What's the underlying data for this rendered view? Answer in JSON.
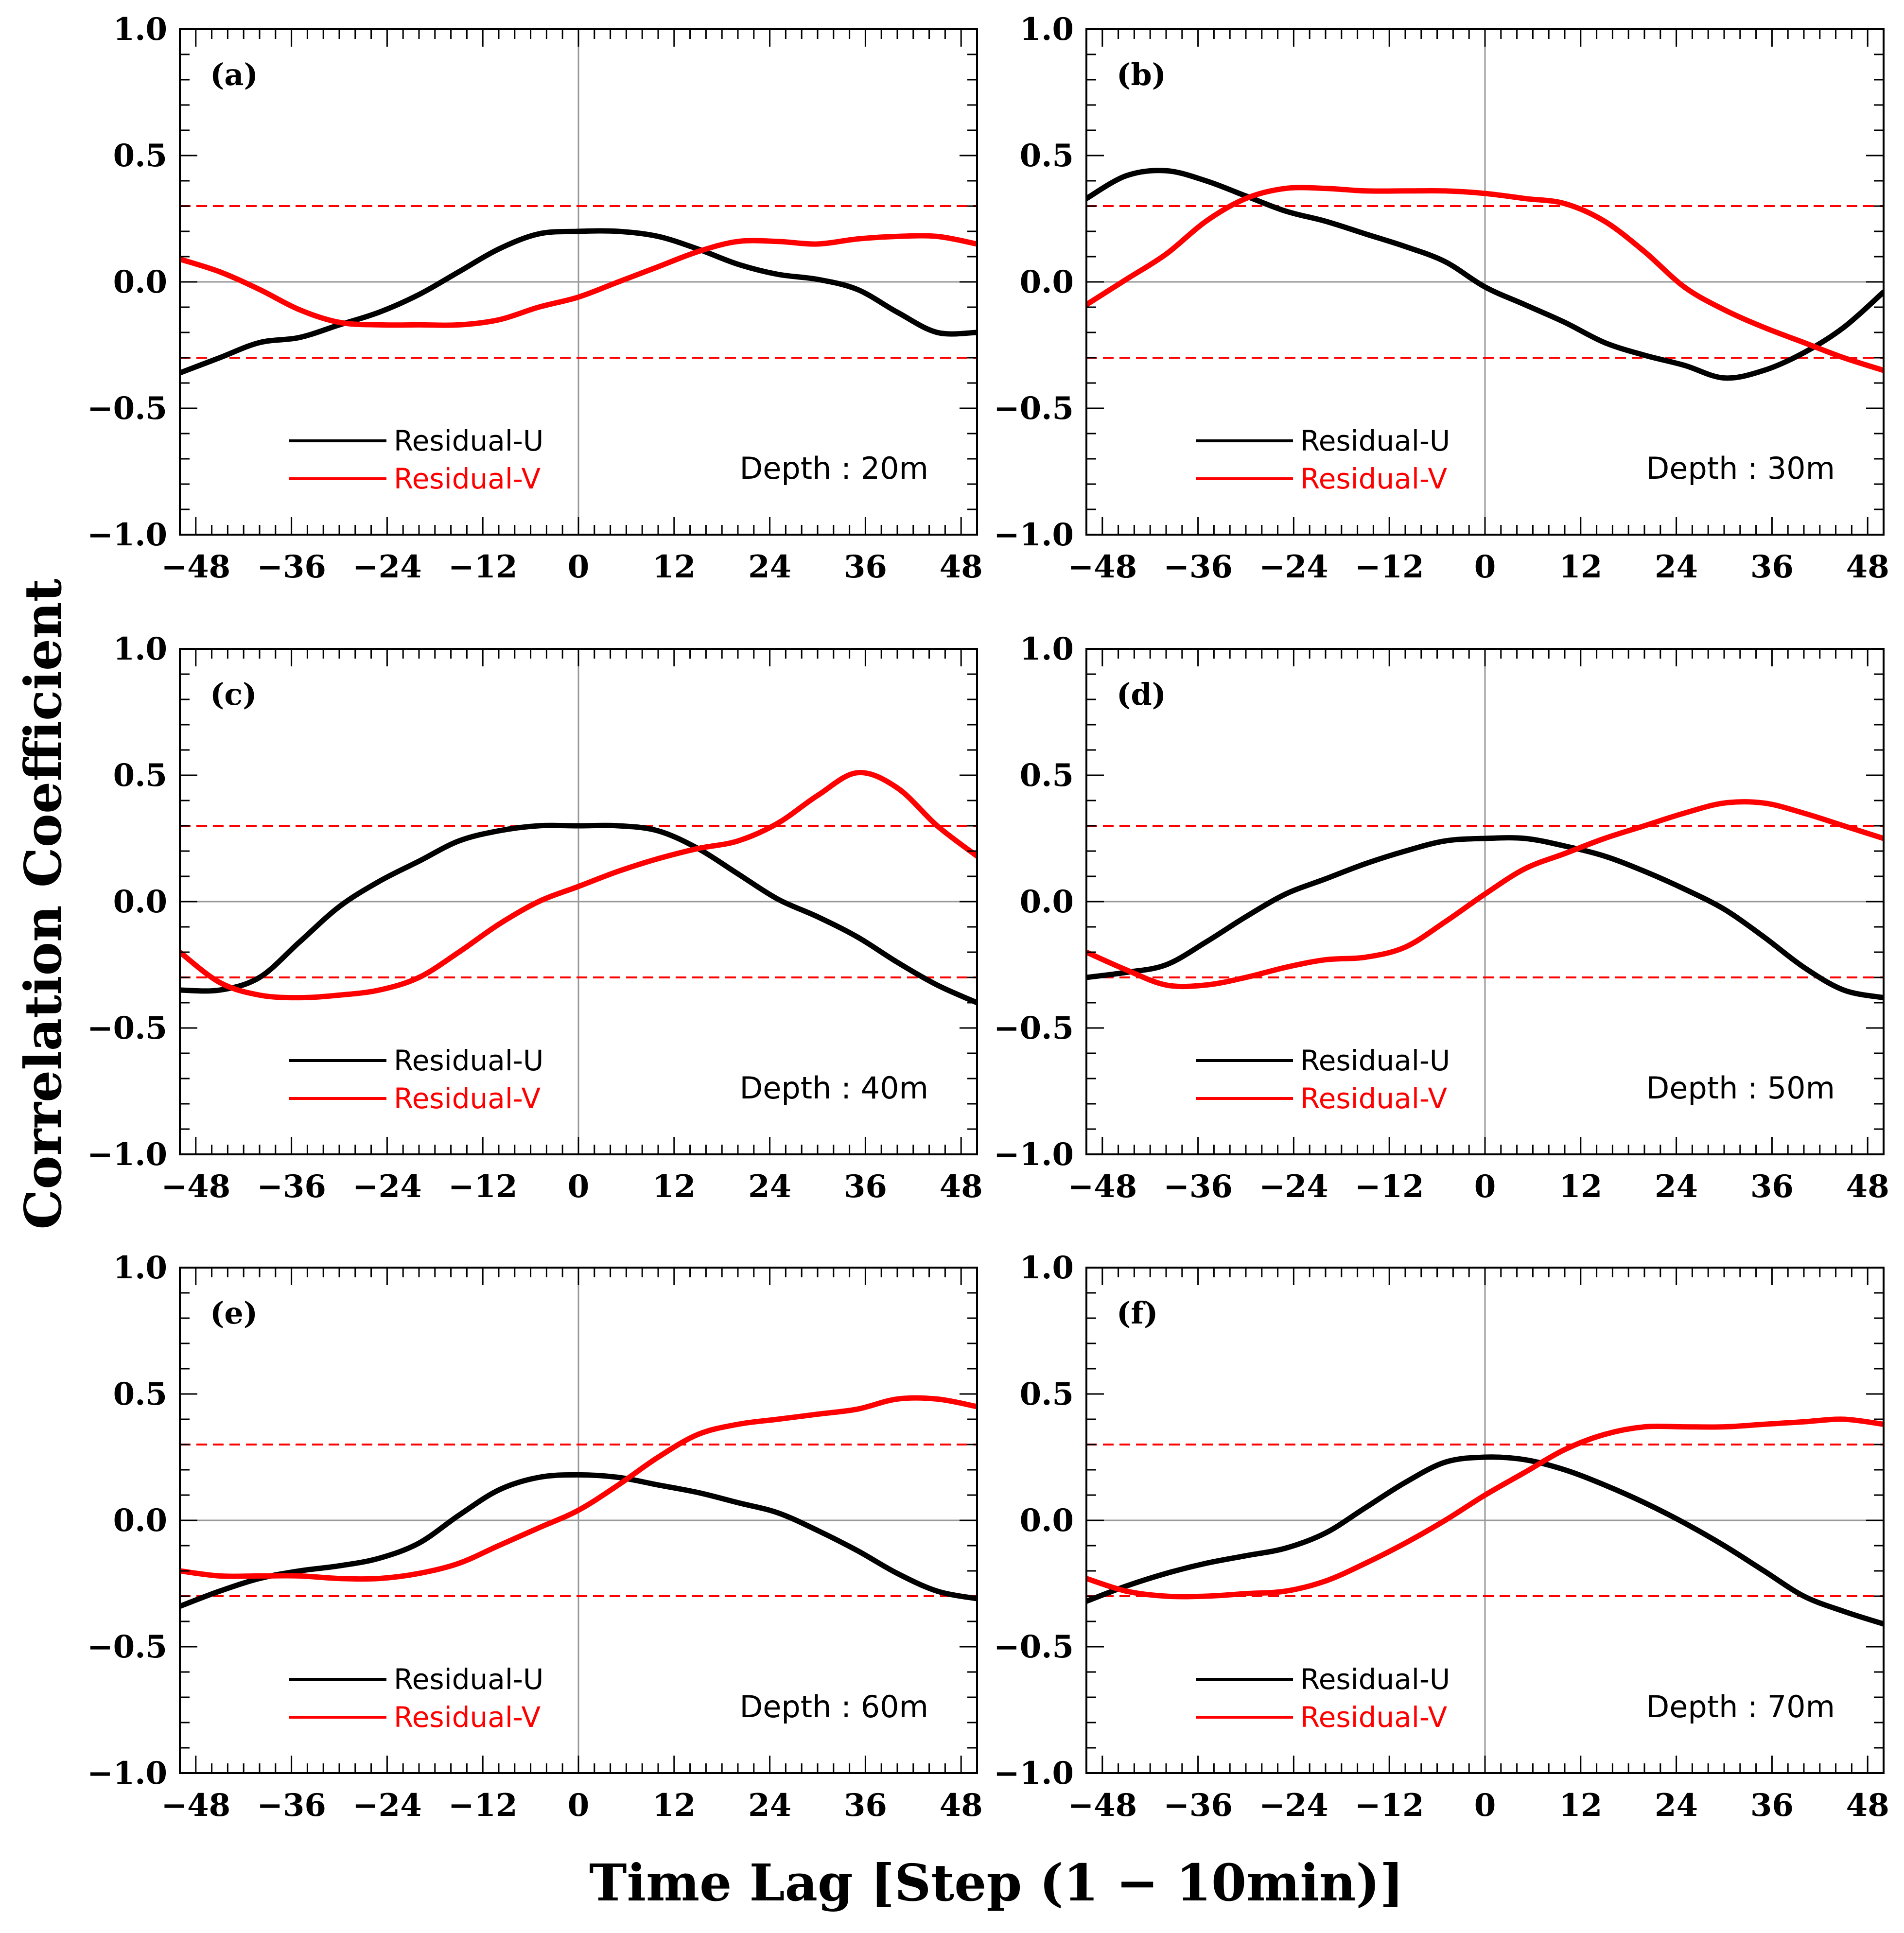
{
  "figure": {
    "ylabel": "Correlation Coefficient",
    "xlabel": "Time Lag [Step (1 − 10min)]"
  },
  "style": {
    "u_color": "#000000",
    "v_color": "#ff0000",
    "significance_color": "#ff0000",
    "zero_line_color": "#999999"
  },
  "chart_data": [
    {
      "type": "line",
      "label": "(a)",
      "annotation": "Depth : 20m",
      "xlim": [
        -50,
        50
      ],
      "ylim": [
        -1.0,
        1.0
      ],
      "xticks": [
        -48,
        -36,
        -24,
        -12,
        0,
        12,
        24,
        36,
        48
      ],
      "xtick_labels": [
        "−48",
        "−36",
        "−24",
        "−12",
        "0",
        "12",
        "24",
        "36",
        "48"
      ],
      "yticks": [
        -1.0,
        -0.5,
        0.0,
        0.5,
        1.0
      ],
      "ytick_labels": [
        "−1.0",
        "−0.5",
        "0.0",
        "0.5",
        "1.0"
      ],
      "significance": [
        0.3,
        -0.3
      ],
      "x": [
        -50,
        -45,
        -40,
        -35,
        -30,
        -25,
        -20,
        -15,
        -10,
        -5,
        0,
        5,
        10,
        15,
        20,
        25,
        30,
        35,
        40,
        45,
        50
      ],
      "series": [
        {
          "name": "Residual-U",
          "values": [
            -0.36,
            -0.3,
            -0.24,
            -0.22,
            -0.17,
            -0.12,
            -0.05,
            0.04,
            0.13,
            0.19,
            0.2,
            0.2,
            0.18,
            0.13,
            0.07,
            0.03,
            0.01,
            -0.03,
            -0.12,
            -0.2,
            -0.2
          ]
        },
        {
          "name": "Residual-V",
          "values": [
            0.09,
            0.04,
            -0.03,
            -0.11,
            -0.16,
            -0.17,
            -0.17,
            -0.17,
            -0.15,
            -0.1,
            -0.06,
            0.0,
            0.06,
            0.12,
            0.16,
            0.16,
            0.15,
            0.17,
            0.18,
            0.18,
            0.15
          ]
        }
      ]
    },
    {
      "type": "line",
      "label": "(b)",
      "annotation": "Depth : 30m",
      "xlim": [
        -50,
        50
      ],
      "ylim": [
        -1.0,
        1.0
      ],
      "xticks": [
        -48,
        -36,
        -24,
        -12,
        0,
        12,
        24,
        36,
        48
      ],
      "xtick_labels": [
        "−48",
        "−36",
        "−24",
        "−12",
        "0",
        "12",
        "24",
        "36",
        "48"
      ],
      "yticks": [
        -1.0,
        -0.5,
        0.0,
        0.5,
        1.0
      ],
      "ytick_labels": [
        "−1.0",
        "−0.5",
        "0.0",
        "0.5",
        "1.0"
      ],
      "significance": [
        0.3,
        -0.3
      ],
      "x": [
        -50,
        -45,
        -40,
        -35,
        -30,
        -25,
        -20,
        -15,
        -10,
        -5,
        0,
        5,
        10,
        15,
        20,
        25,
        30,
        35,
        40,
        45,
        50
      ],
      "series": [
        {
          "name": "Residual-U",
          "values": [
            0.33,
            0.42,
            0.44,
            0.4,
            0.34,
            0.28,
            0.24,
            0.19,
            0.14,
            0.08,
            -0.02,
            -0.09,
            -0.16,
            -0.24,
            -0.29,
            -0.33,
            -0.38,
            -0.35,
            -0.28,
            -0.18,
            -0.04
          ]
        },
        {
          "name": "Residual-V",
          "values": [
            -0.09,
            0.01,
            0.11,
            0.24,
            0.33,
            0.37,
            0.37,
            0.36,
            0.36,
            0.36,
            0.35,
            0.33,
            0.31,
            0.24,
            0.12,
            -0.02,
            -0.11,
            -0.18,
            -0.24,
            -0.3,
            -0.35
          ]
        }
      ]
    },
    {
      "type": "line",
      "label": "(c)",
      "annotation": "Depth : 40m",
      "xlim": [
        -50,
        50
      ],
      "ylim": [
        -1.0,
        1.0
      ],
      "xticks": [
        -48,
        -36,
        -24,
        -12,
        0,
        12,
        24,
        36,
        48
      ],
      "xtick_labels": [
        "−48",
        "−36",
        "−24",
        "−12",
        "0",
        "12",
        "24",
        "36",
        "48"
      ],
      "yticks": [
        -1.0,
        -0.5,
        0.0,
        0.5,
        1.0
      ],
      "ytick_labels": [
        "−1.0",
        "−0.5",
        "0.0",
        "0.5",
        "1.0"
      ],
      "significance": [
        0.3,
        -0.3
      ],
      "x": [
        -50,
        -45,
        -40,
        -35,
        -30,
        -25,
        -20,
        -15,
        -10,
        -5,
        0,
        5,
        10,
        15,
        20,
        25,
        30,
        35,
        40,
        45,
        50
      ],
      "series": [
        {
          "name": "Residual-U",
          "values": [
            -0.35,
            -0.35,
            -0.3,
            -0.16,
            -0.02,
            0.08,
            0.16,
            0.24,
            0.28,
            0.3,
            0.3,
            0.3,
            0.28,
            0.21,
            0.11,
            0.01,
            -0.06,
            -0.14,
            -0.24,
            -0.33,
            -0.4
          ]
        },
        {
          "name": "Residual-V",
          "values": [
            -0.2,
            -0.32,
            -0.37,
            -0.38,
            -0.37,
            -0.35,
            -0.3,
            -0.2,
            -0.09,
            0.0,
            0.06,
            0.12,
            0.17,
            0.21,
            0.24,
            0.31,
            0.42,
            0.51,
            0.45,
            0.3,
            0.18
          ]
        }
      ]
    },
    {
      "type": "line",
      "label": "(d)",
      "annotation": "Depth : 50m",
      "xlim": [
        -50,
        50
      ],
      "ylim": [
        -1.0,
        1.0
      ],
      "xticks": [
        -48,
        -36,
        -24,
        -12,
        0,
        12,
        24,
        36,
        48
      ],
      "xtick_labels": [
        "−48",
        "−36",
        "−24",
        "−12",
        "0",
        "12",
        "24",
        "36",
        "48"
      ],
      "yticks": [
        -1.0,
        -0.5,
        0.0,
        0.5,
        1.0
      ],
      "ytick_labels": [
        "−1.0",
        "−0.5",
        "0.0",
        "0.5",
        "1.0"
      ],
      "significance": [
        0.3,
        -0.3
      ],
      "x": [
        -50,
        -45,
        -40,
        -35,
        -30,
        -25,
        -20,
        -15,
        -10,
        -5,
        0,
        5,
        10,
        15,
        20,
        25,
        30,
        35,
        40,
        45,
        50
      ],
      "series": [
        {
          "name": "Residual-U",
          "values": [
            -0.3,
            -0.28,
            -0.25,
            -0.16,
            -0.06,
            0.03,
            0.09,
            0.15,
            0.2,
            0.24,
            0.25,
            0.25,
            0.22,
            0.18,
            0.12,
            0.05,
            -0.03,
            -0.14,
            -0.26,
            -0.35,
            -0.38
          ]
        },
        {
          "name": "Residual-V",
          "values": [
            -0.2,
            -0.27,
            -0.33,
            -0.33,
            -0.3,
            -0.26,
            -0.23,
            -0.22,
            -0.18,
            -0.08,
            0.03,
            0.13,
            0.19,
            0.25,
            0.3,
            0.35,
            0.39,
            0.39,
            0.35,
            0.3,
            0.25
          ]
        }
      ]
    },
    {
      "type": "line",
      "label": "(e)",
      "annotation": "Depth : 60m",
      "xlim": [
        -50,
        50
      ],
      "ylim": [
        -1.0,
        1.0
      ],
      "xticks": [
        -48,
        -36,
        -24,
        -12,
        0,
        12,
        24,
        36,
        48
      ],
      "xtick_labels": [
        "−48",
        "−36",
        "−24",
        "−12",
        "0",
        "12",
        "24",
        "36",
        "48"
      ],
      "yticks": [
        -1.0,
        -0.5,
        0.0,
        0.5,
        1.0
      ],
      "ytick_labels": [
        "−1.0",
        "−0.5",
        "0.0",
        "0.5",
        "1.0"
      ],
      "significance": [
        0.3,
        -0.3
      ],
      "x": [
        -50,
        -45,
        -40,
        -35,
        -30,
        -25,
        -20,
        -15,
        -10,
        -5,
        0,
        5,
        10,
        15,
        20,
        25,
        30,
        35,
        40,
        45,
        50
      ],
      "series": [
        {
          "name": "Residual-U",
          "values": [
            -0.34,
            -0.28,
            -0.23,
            -0.2,
            -0.18,
            -0.15,
            -0.09,
            0.02,
            0.12,
            0.17,
            0.18,
            0.17,
            0.14,
            0.11,
            0.07,
            0.03,
            -0.04,
            -0.12,
            -0.21,
            -0.28,
            -0.31
          ]
        },
        {
          "name": "Residual-V",
          "values": [
            -0.2,
            -0.22,
            -0.22,
            -0.22,
            -0.23,
            -0.23,
            -0.21,
            -0.17,
            -0.1,
            -0.03,
            0.04,
            0.14,
            0.25,
            0.34,
            0.38,
            0.4,
            0.42,
            0.44,
            0.48,
            0.48,
            0.45
          ]
        }
      ]
    },
    {
      "type": "line",
      "label": "(f)",
      "annotation": "Depth : 70m",
      "xlim": [
        -50,
        50
      ],
      "ylim": [
        -1.0,
        1.0
      ],
      "xticks": [
        -48,
        -36,
        -24,
        -12,
        0,
        12,
        24,
        36,
        48
      ],
      "xtick_labels": [
        "−48",
        "−36",
        "−24",
        "−12",
        "0",
        "12",
        "24",
        "36",
        "48"
      ],
      "yticks": [
        -1.0,
        -0.5,
        0.0,
        0.5,
        1.0
      ],
      "ytick_labels": [
        "−1.0",
        "−0.5",
        "0.0",
        "0.5",
        "1.0"
      ],
      "significance": [
        0.3,
        -0.3
      ],
      "x": [
        -50,
        -45,
        -40,
        -35,
        -30,
        -25,
        -20,
        -15,
        -10,
        -5,
        0,
        5,
        10,
        15,
        20,
        25,
        30,
        35,
        40,
        45,
        50
      ],
      "series": [
        {
          "name": "Residual-U",
          "values": [
            -0.32,
            -0.26,
            -0.21,
            -0.17,
            -0.14,
            -0.11,
            -0.05,
            0.05,
            0.15,
            0.23,
            0.25,
            0.24,
            0.2,
            0.14,
            0.07,
            -0.01,
            -0.1,
            -0.2,
            -0.3,
            -0.36,
            -0.41
          ]
        },
        {
          "name": "Residual-V",
          "values": [
            -0.23,
            -0.28,
            -0.3,
            -0.3,
            -0.29,
            -0.28,
            -0.24,
            -0.17,
            -0.09,
            0.0,
            0.1,
            0.19,
            0.28,
            0.34,
            0.37,
            0.37,
            0.37,
            0.38,
            0.39,
            0.4,
            0.38
          ]
        }
      ]
    }
  ]
}
